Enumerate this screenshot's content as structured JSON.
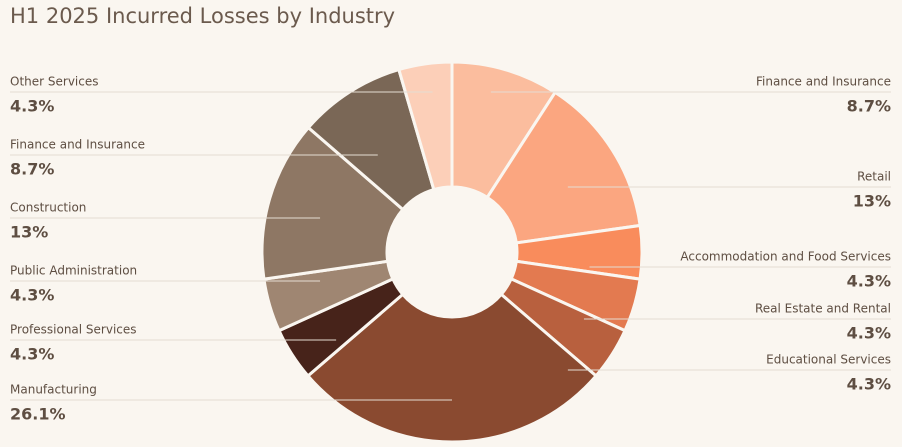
{
  "chart_data": {
    "type": "pie",
    "title": "H1 2025 Incurred Losses by Industry",
    "donut": true,
    "categories": [
      "Finance and Insurance",
      "Retail",
      "Accommodation and Food Services",
      "Real Estate and Rental",
      "Educational Services",
      "Manufacturing",
      "Professional Services",
      "Public Administration",
      "Construction",
      "Finance and Insurance",
      "Other Services"
    ],
    "values": [
      8.7,
      13,
      4.3,
      4.3,
      4.3,
      26.1,
      4.3,
      4.3,
      13,
      8.7,
      4.3
    ],
    "value_labels": [
      "8.7%",
      "13%",
      "4.3%",
      "4.3%",
      "4.3%",
      "26.1%",
      "4.3%",
      "4.3%",
      "13%",
      "8.7%",
      "4.3%"
    ],
    "colors": [
      "#fbbd9e",
      "#fba680",
      "#f98c5c",
      "#e37a50",
      "#b8603e",
      "#8a4a30",
      "#47231a",
      "#9f8672",
      "#8e7764",
      "#7a6756",
      "#fccfb8"
    ]
  }
}
